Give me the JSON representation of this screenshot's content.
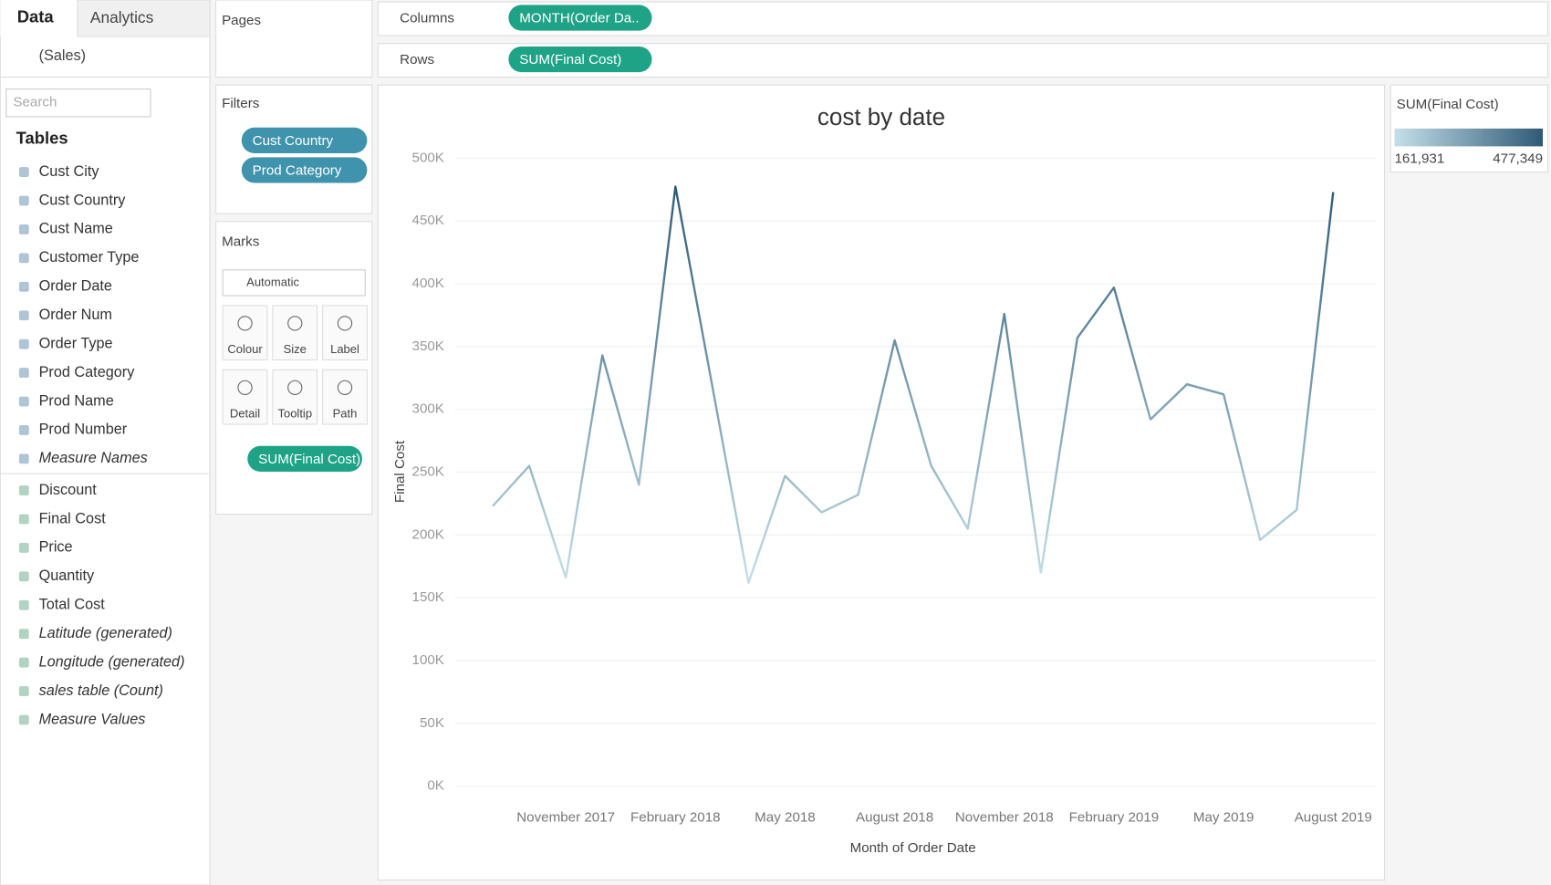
{
  "sidebar": {
    "tabs": [
      "Data",
      "Analytics"
    ],
    "datasource": "(Sales)",
    "search_placeholder": "Search",
    "tables_heading": "Tables",
    "dimensions": [
      {
        "name": "Cust City"
      },
      {
        "name": "Cust Country"
      },
      {
        "name": "Cust Name"
      },
      {
        "name": "Customer Type"
      },
      {
        "name": "Order Date"
      },
      {
        "name": "Order Num"
      },
      {
        "name": "Order Type"
      },
      {
        "name": "Prod Category"
      },
      {
        "name": "Prod Name"
      },
      {
        "name": "Prod Number"
      },
      {
        "name": "Measure Names",
        "italic": true
      }
    ],
    "measures": [
      {
        "name": "Discount"
      },
      {
        "name": "Final Cost"
      },
      {
        "name": "Price"
      },
      {
        "name": "Quantity"
      },
      {
        "name": "Total Cost"
      },
      {
        "name": "Latitude (generated)",
        "italic": true
      },
      {
        "name": "Longitude (generated)",
        "italic": true
      },
      {
        "name": "sales table (Count)",
        "italic": true
      },
      {
        "name": "Measure Values",
        "italic": true
      }
    ]
  },
  "pages": {
    "title": "Pages"
  },
  "shelves": {
    "columns": {
      "label": "Columns",
      "pill": "MONTH(Order Da.."
    },
    "rows": {
      "label": "Rows",
      "pill": "SUM(Final Cost)"
    }
  },
  "filters": {
    "title": "Filters",
    "pills": [
      "Cust Country",
      "Prod Category"
    ]
  },
  "marks": {
    "title": "Marks",
    "mark_type": "Automatic",
    "buttons": [
      "Colour",
      "Size",
      "Label",
      "Detail",
      "Tooltip",
      "Path"
    ],
    "pill": "SUM(Final Cost)"
  },
  "legend": {
    "title": "SUM(Final Cost)",
    "min_label": "161,931",
    "max_label": "477,349",
    "colors": [
      "#c4dfe9",
      "#2f5a77"
    ]
  },
  "chart_data": {
    "type": "line",
    "title": "cost by date",
    "x_label": "Month of Order Date",
    "y_label": "Final Cost",
    "categories": [
      null,
      null,
      "November 2017",
      null,
      null,
      "February 2018",
      null,
      null,
      "May 2018",
      null,
      null,
      "August 2018",
      null,
      null,
      "November 2018",
      null,
      null,
      "February 2019",
      null,
      null,
      "May 2019",
      null,
      null,
      "August 2019"
    ],
    "values": [
      223000,
      255000,
      166000,
      343000,
      240000,
      477349,
      320000,
      161931,
      247000,
      218000,
      232000,
      355000,
      255000,
      205000,
      376000,
      170000,
      357000,
      397000,
      292000,
      320000,
      312000,
      196000,
      220000,
      473000
    ],
    "ylim": [
      0,
      500000
    ],
    "yticks": [
      {
        "value": 0,
        "label": "0K"
      },
      {
        "value": 50000,
        "label": "50K"
      },
      {
        "value": 100000,
        "label": "100K"
      },
      {
        "value": 150000,
        "label": "150K"
      },
      {
        "value": 200000,
        "label": "200K"
      },
      {
        "value": 250000,
        "label": "250K"
      },
      {
        "value": 300000,
        "label": "300K"
      },
      {
        "value": 350000,
        "label": "350K"
      },
      {
        "value": 400000,
        "label": "400K"
      },
      {
        "value": 450000,
        "label": "450K"
      },
      {
        "value": 500000,
        "label": "500K"
      }
    ],
    "grid": true
  }
}
